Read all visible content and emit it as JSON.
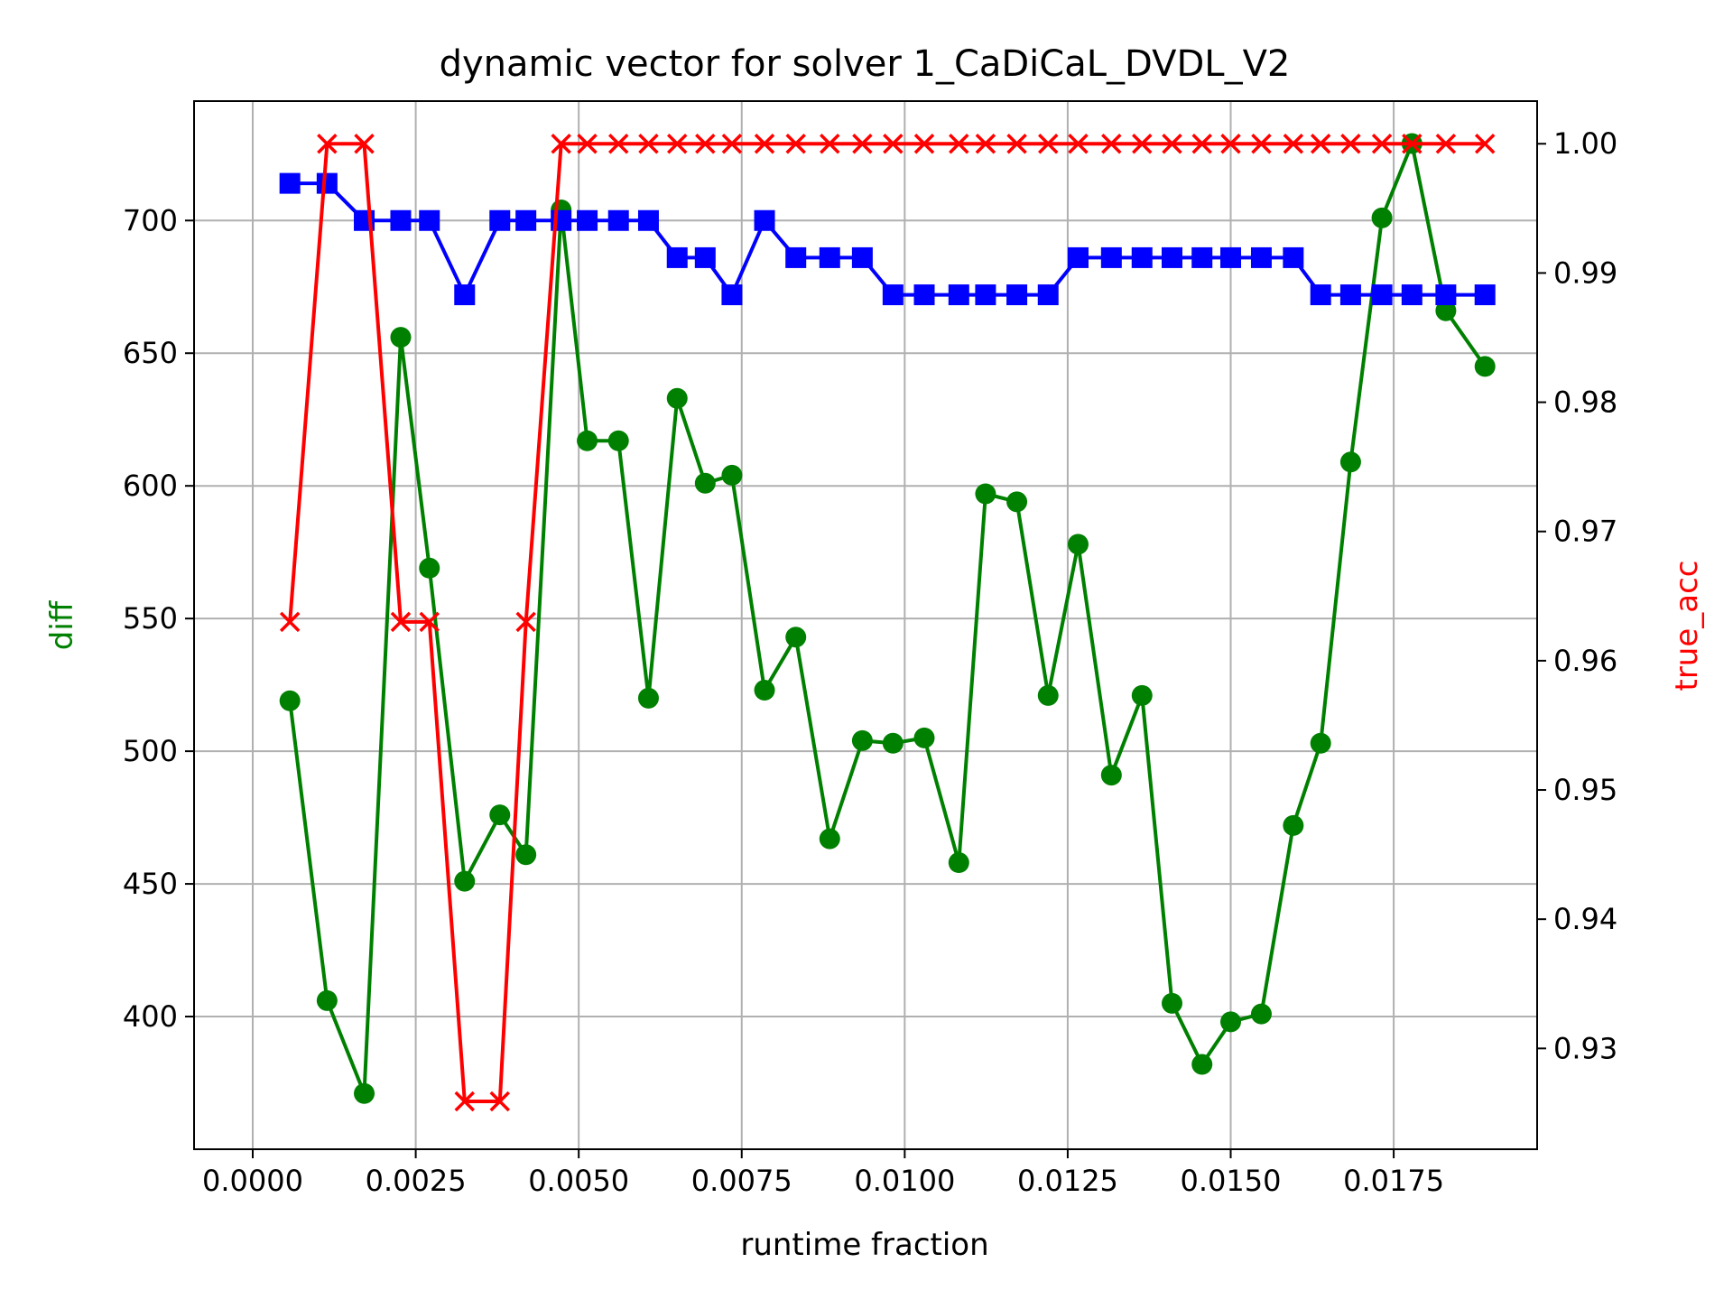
{
  "chart_data": {
    "type": "line",
    "title": "dynamic vector for solver 1_CaDiCaL_DVDL_V2",
    "xlabel": "runtime fraction",
    "ylabel_left": "diff",
    "ylabel_right": "true_acc",
    "xlim": [
      -0.0009,
      0.0197
    ],
    "ylim_left": [
      350,
      745
    ],
    "ylim_right": [
      0.9222,
      1.0033
    ],
    "grid": true,
    "x_ticks": [
      {
        "value": 0.0,
        "label": "0.0000"
      },
      {
        "value": 0.0025,
        "label": "0.0025"
      },
      {
        "value": 0.005,
        "label": "0.0050"
      },
      {
        "value": 0.0075,
        "label": "0.0075"
      },
      {
        "value": 0.01,
        "label": "0.0100"
      },
      {
        "value": 0.0125,
        "label": "0.0125"
      },
      {
        "value": 0.015,
        "label": "0.0150"
      },
      {
        "value": 0.0175,
        "label": "0.0175"
      }
    ],
    "y_left_ticks": [
      {
        "value": 400,
        "label": "400"
      },
      {
        "value": 450,
        "label": "450"
      },
      {
        "value": 500,
        "label": "500"
      },
      {
        "value": 550,
        "label": "550"
      },
      {
        "value": 600,
        "label": "600"
      },
      {
        "value": 650,
        "label": "650"
      },
      {
        "value": 700,
        "label": "700"
      }
    ],
    "y_right_ticks": [
      {
        "value": 0.93,
        "label": "0.93"
      },
      {
        "value": 0.94,
        "label": "0.94"
      },
      {
        "value": 0.95,
        "label": "0.95"
      },
      {
        "value": 0.96,
        "label": "0.96"
      },
      {
        "value": 0.97,
        "label": "0.97"
      },
      {
        "value": 0.98,
        "label": "0.98"
      },
      {
        "value": 0.99,
        "label": "0.99"
      },
      {
        "value": 1.0,
        "label": "1.00"
      }
    ],
    "x": [
      0.00057,
      0.00114,
      0.00171,
      0.00227,
      0.00271,
      0.00325,
      0.00379,
      0.00419,
      0.00473,
      0.00513,
      0.00561,
      0.00607,
      0.00651,
      0.00694,
      0.00735,
      0.00785,
      0.00833,
      0.00885,
      0.00935,
      0.00982,
      0.0103,
      0.01083,
      0.01124,
      0.01172,
      0.0122,
      0.01266,
      0.01317,
      0.01364,
      0.0141,
      0.01456,
      0.015,
      0.01547,
      0.01596,
      0.01638,
      0.01684,
      0.01732,
      0.01778,
      0.0183,
      0.0189
    ],
    "series": [
      {
        "axis": "left",
        "color": "#008000",
        "marker": "circle",
        "values": [
          519,
          406,
          371,
          656,
          569,
          451,
          476,
          461,
          704,
          617,
          617,
          520,
          633,
          601,
          604,
          523,
          543,
          467,
          504,
          503,
          505,
          458,
          597,
          594,
          521,
          578,
          491,
          521,
          405,
          382,
          398,
          401,
          472,
          503,
          609,
          701,
          729,
          666,
          645
        ]
      },
      {
        "axis": "left",
        "color": "#0000ff",
        "marker": "square",
        "values": [
          714,
          714,
          700,
          700,
          700,
          672,
          700,
          700,
          700,
          700,
          700,
          700,
          686,
          686,
          672,
          700,
          686,
          686,
          686,
          672,
          672,
          672,
          672,
          672,
          672,
          686,
          686,
          686,
          686,
          686,
          686,
          686,
          686,
          672,
          672,
          672,
          672,
          672,
          672
        ]
      },
      {
        "axis": "right",
        "color": "#ff0000",
        "marker": "x",
        "values": [
          0.963,
          1.0,
          1.0,
          0.963,
          0.963,
          0.9259,
          0.9259,
          0.963,
          1.0,
          1.0,
          1.0,
          1.0,
          1.0,
          1.0,
          1.0,
          1.0,
          1.0,
          1.0,
          1.0,
          1.0,
          1.0,
          1.0,
          1.0,
          1.0,
          1.0,
          1.0,
          1.0,
          1.0,
          1.0,
          1.0,
          1.0,
          1.0,
          1.0,
          1.0,
          1.0,
          1.0,
          1.0,
          1.0,
          1.0
        ]
      }
    ]
  }
}
